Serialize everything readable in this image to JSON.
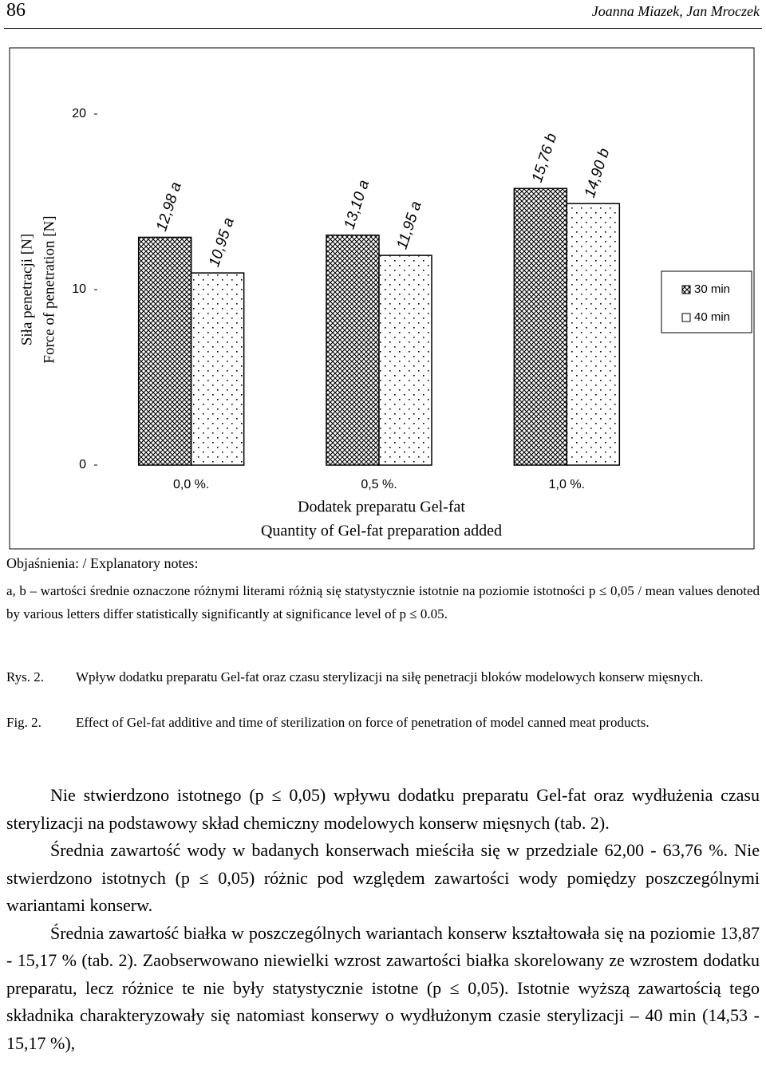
{
  "header": {
    "page_number": "86",
    "authors": "Joanna Miazek, Jan Mroczek"
  },
  "chart_data": {
    "type": "bar",
    "ylabel": [
      "Siła penetracji [N]",
      "Force of penetration [N]"
    ],
    "xlabel": [
      "Dodatek preparatu Gel-fat",
      "Quantity of Gel-fat preparation added"
    ],
    "categories": [
      "0,0 %.",
      "0,5 %.",
      "1,0 %."
    ],
    "series": [
      {
        "name": "30 min",
        "color": "#000000",
        "pattern": "crosshatch",
        "values": [
          12.98,
          13.1,
          15.76
        ],
        "value_labels": [
          "12,98 a",
          "13,10 a",
          "15,76 b"
        ]
      },
      {
        "name": "40 min",
        "color": "#000000",
        "pattern": "dots",
        "values": [
          10.95,
          11.95,
          14.9
        ],
        "value_labels": [
          "10,95 a",
          "11,95 a",
          "14,90 b"
        ]
      }
    ],
    "ylim": [
      0,
      20
    ],
    "yticks": [
      0,
      10,
      20
    ],
    "grid": false,
    "legend": "right"
  },
  "notes": {
    "title": "Objaśnienia: / Explanatory notes:",
    "text": "a, b – wartości średnie oznaczone różnymi literami różnią się statystycznie istotnie na poziomie istotności p ≤ 0,05 / mean values denoted by various letters differ statistically significantly at significance level of p ≤ 0.05."
  },
  "caption": {
    "pl_label": "Rys. 2.",
    "pl_text": "Wpływ dodatku preparatu Gel-fat oraz czasu sterylizacji na siłę penetracji bloków modelowych konserw mięsnych.",
    "en_label": "Fig. 2.",
    "en_text": "Effect of Gel-fat additive and time of sterilization on force of penetration of model canned meat products."
  },
  "paragraphs": [
    "Nie stwierdzono istotnego (p ≤ 0,05) wpływu dodatku preparatu Gel-fat oraz wydłużenia czasu sterylizacji na podstawowy skład chemiczny modelowych konserw mięsnych (tab. 2).",
    "Średnia zawartość wody w badanych konserwach mieściła się w przedziale 62,00 - 63,76 %. Nie stwierdzono istotnych (p ≤ 0,05) różnic pod względem zawartości wody pomiędzy poszczególnymi wariantami konserw.",
    "Średnia zawartość białka w poszczególnych wariantach konserw kształtowała się na poziomie 13,87 - 15,17 % (tab. 2). Zaobserwowano niewielki wzrost zawartości białka skorelowany ze wzrostem dodatku preparatu, lecz różnice te nie były statystycznie istotne (p ≤ 0,05). Istotnie wyższą zawartością tego składnika charakteryzowały się natomiast konserwy o wydłużonym czasie sterylizacji – 40 min (14,53 - 15,17 %),"
  ]
}
